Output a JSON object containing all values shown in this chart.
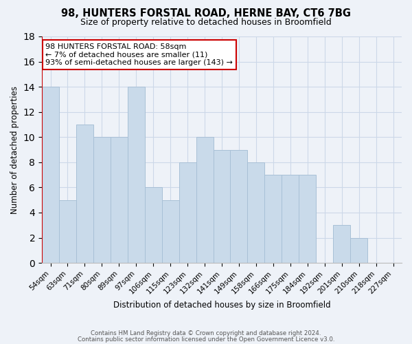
{
  "title": "98, HUNTERS FORSTAL ROAD, HERNE BAY, CT6 7BG",
  "subtitle": "Size of property relative to detached houses in Broomfield",
  "xlabel": "Distribution of detached houses by size in Broomfield",
  "ylabel": "Number of detached properties",
  "bar_color": "#c9daea",
  "bar_edge_color": "#a8c0d6",
  "categories": [
    "54sqm",
    "63sqm",
    "71sqm",
    "80sqm",
    "89sqm",
    "97sqm",
    "106sqm",
    "115sqm",
    "123sqm",
    "132sqm",
    "141sqm",
    "149sqm",
    "158sqm",
    "166sqm",
    "175sqm",
    "184sqm",
    "192sqm",
    "201sqm",
    "210sqm",
    "218sqm",
    "227sqm"
  ],
  "values": [
    14,
    5,
    11,
    10,
    10,
    14,
    6,
    5,
    8,
    10,
    9,
    9,
    8,
    7,
    7,
    7,
    0,
    3,
    2,
    0,
    0
  ],
  "ylim": [
    0,
    18
  ],
  "yticks": [
    0,
    2,
    4,
    6,
    8,
    10,
    12,
    14,
    16,
    18
  ],
  "annotation_box_text": "98 HUNTERS FORSTAL ROAD: 58sqm\n← 7% of detached houses are smaller (11)\n93% of semi-detached houses are larger (143) →",
  "annotation_box_color": "#ffffff",
  "annotation_box_edge_color": "#cc0000",
  "marker_line_color": "#cc0000",
  "grid_color": "#ccd8e8",
  "background_color": "#eef2f8",
  "footer_line1": "Contains HM Land Registry data © Crown copyright and database right 2024.",
  "footer_line2": "Contains public sector information licensed under the Open Government Licence v3.0."
}
